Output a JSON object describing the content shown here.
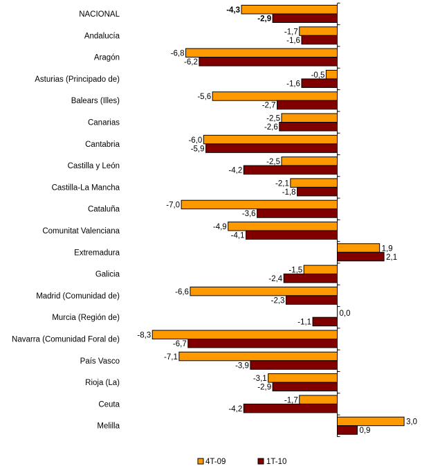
{
  "chart_data": {
    "type": "bar",
    "orientation": "horizontal",
    "title": "",
    "xlabel": "",
    "ylabel": "",
    "xlim": [
      -8.3,
      3.0
    ],
    "categories": [
      "NACIONAL",
      "Andalucía",
      "Aragón",
      "Asturias (Principado de)",
      "Balears (Illes)",
      "Canarias",
      "Cantabria",
      "Castilla y León",
      "Castilla-La Mancha",
      "Cataluña",
      "Comunitat Valenciana",
      "Extremadura",
      "Galicia",
      "Madrid (Comunidad de)",
      "Murcia (Región de)",
      "Navarra (Comunidad Foral de)",
      "País Vasco",
      "Rioja (La)",
      "Ceuta",
      "Melilla"
    ],
    "series": [
      {
        "name": "4T-09",
        "color": "#FF9900",
        "values": [
          -4.3,
          -1.7,
          -6.8,
          -0.5,
          -5.6,
          -2.5,
          -6.0,
          -2.5,
          -2.1,
          -7.0,
          -4.9,
          1.9,
          -1.5,
          -6.6,
          0.0,
          -8.3,
          -7.1,
          -3.1,
          -1.7,
          3.0
        ],
        "labels": [
          "-4,3",
          "-1,7",
          "-6,8",
          "-0,5",
          "-5,6",
          "-2,5",
          "-6,0",
          "-2,5",
          "-2,1",
          "-7,0",
          "-4,9",
          "1,9",
          "-1,5",
          "-6,6",
          "0,0",
          "-8,3",
          "-7,1",
          "-3,1",
          "-1,7",
          "3,0"
        ]
      },
      {
        "name": "1T-10",
        "color": "#800000",
        "values": [
          -2.9,
          -1.6,
          -6.2,
          -1.6,
          -2.7,
          -2.6,
          -5.9,
          -4.2,
          -1.8,
          -3.6,
          -4.1,
          2.1,
          -2.4,
          -2.3,
          -1.1,
          -6.7,
          -3.9,
          -2.9,
          -4.2,
          0.9
        ],
        "labels": [
          "-2,9",
          "-1,6",
          "-6,2",
          "-1,6",
          "-2,7",
          "-2,6",
          "-5,9",
          "-4,2",
          "-1,8",
          "-3,6",
          "-4,1",
          "2,1",
          "-2,4",
          "-2,3",
          "-1,1",
          "-6,7",
          "-3,9",
          "-2,9",
          "-4,2",
          "0,9"
        ]
      }
    ],
    "legend_position": "bottom",
    "bold_categories": [
      "NACIONAL"
    ]
  }
}
